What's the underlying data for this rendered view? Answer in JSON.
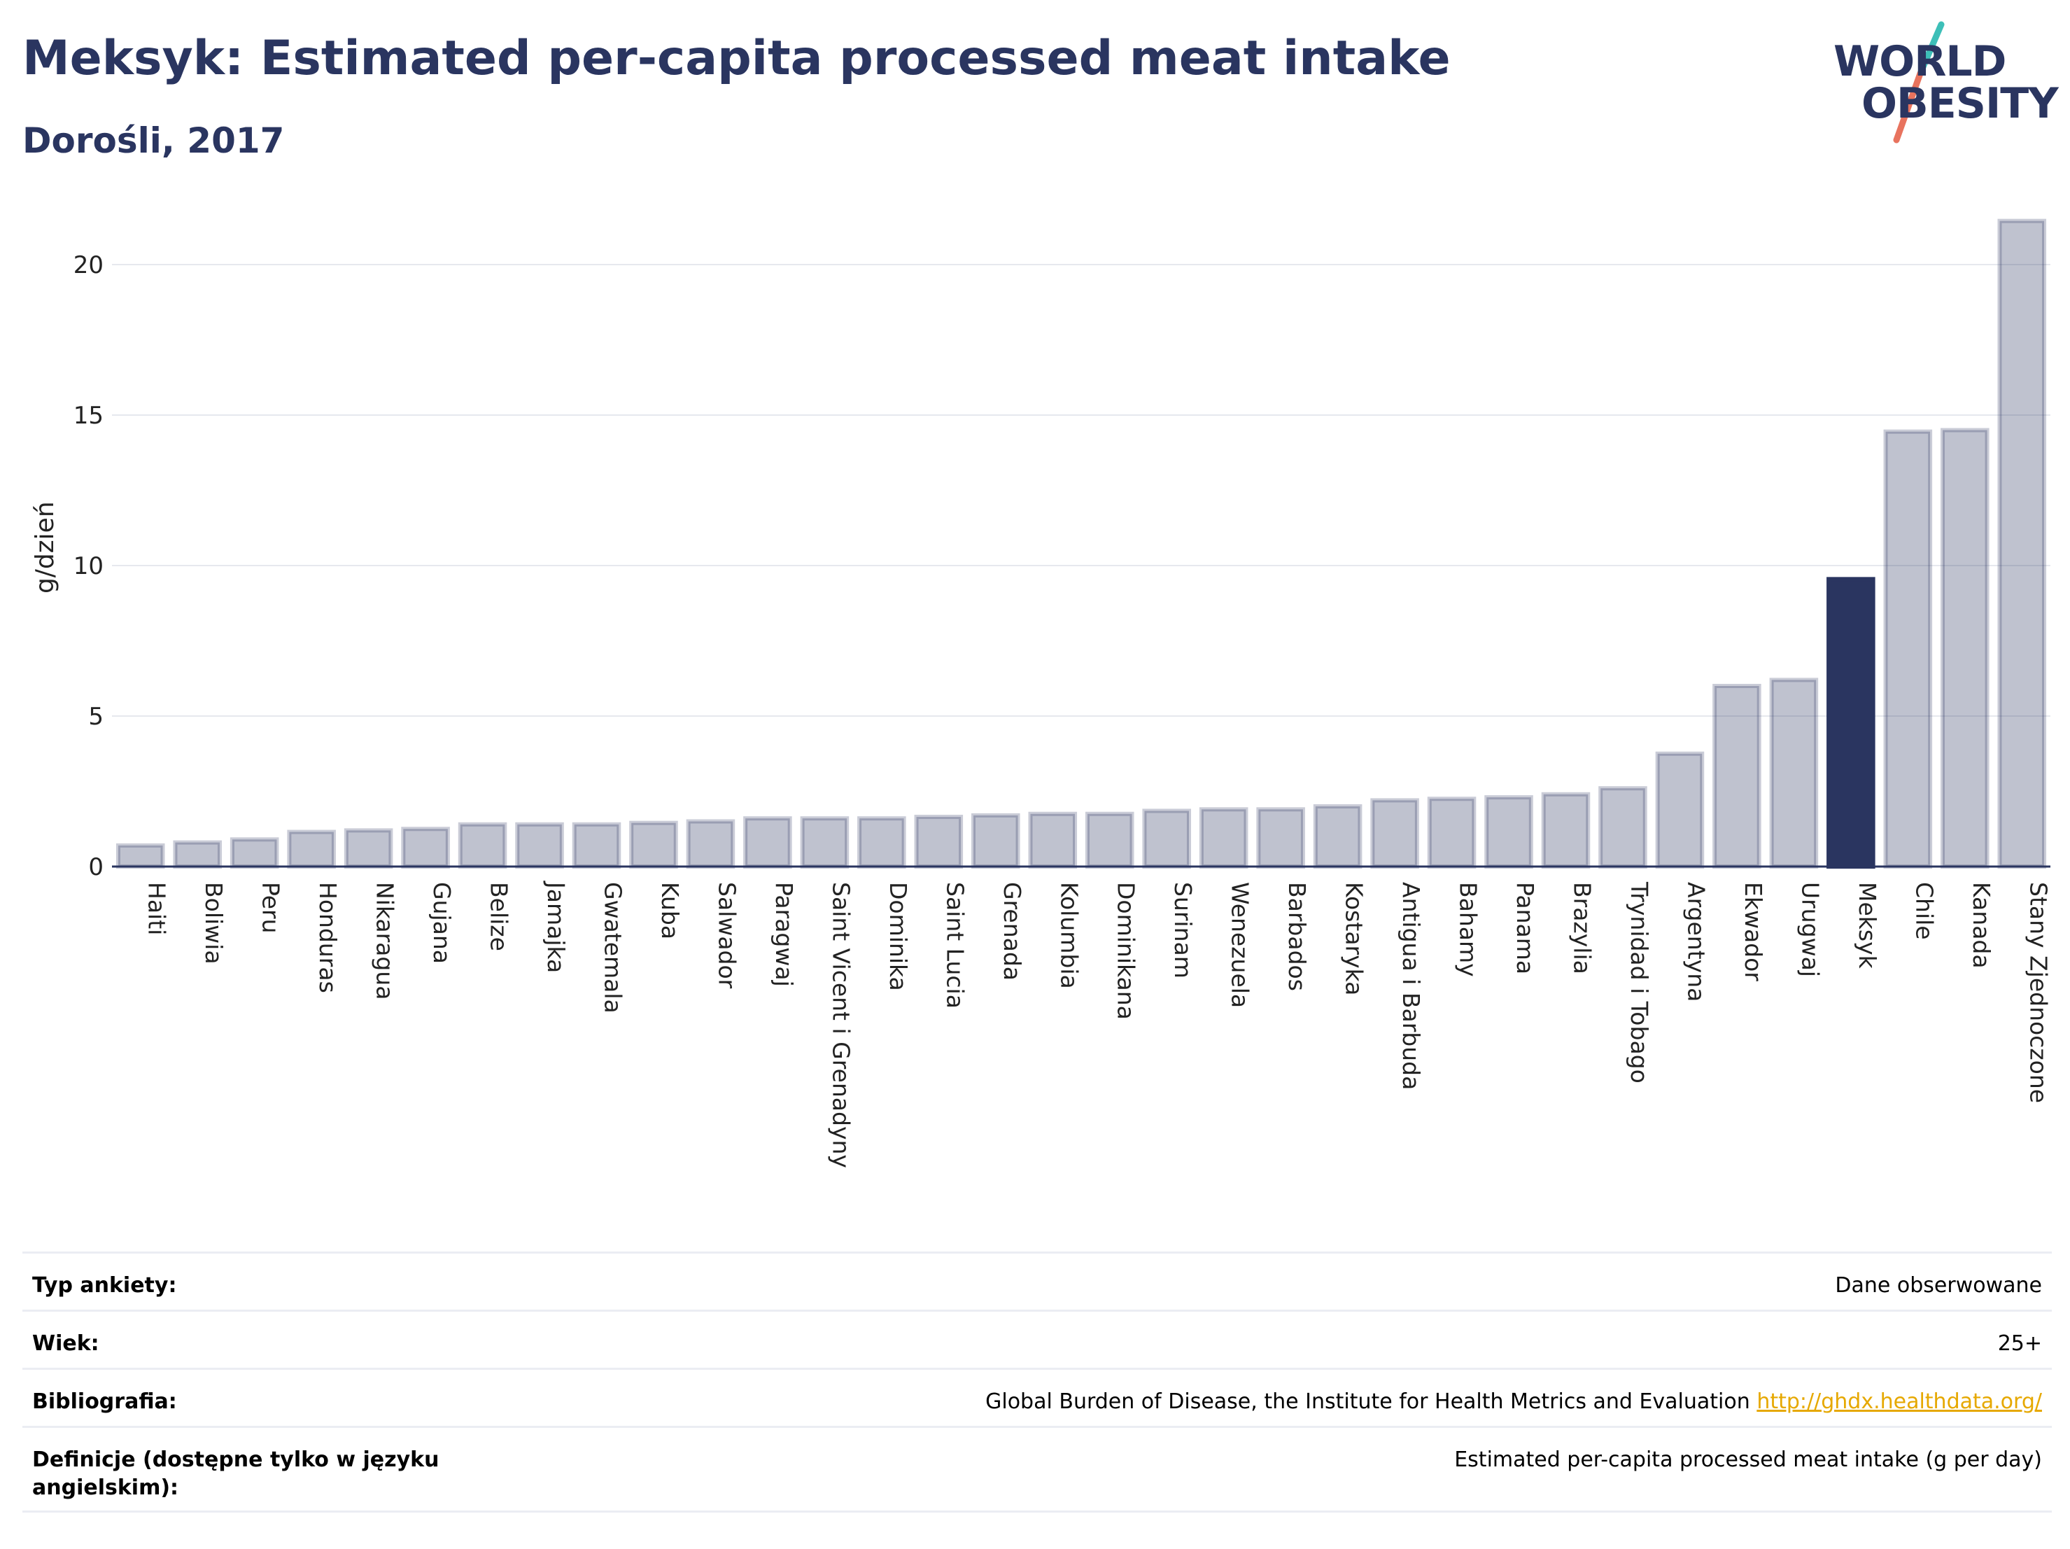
{
  "header": {
    "title": "Meksyk: Estimated per-capita processed meat intake",
    "subtitle": "Dorośli, 2017"
  },
  "logo": {
    "line1": "WORLD",
    "line2": "OBESITY"
  },
  "chart_data": {
    "type": "bar",
    "ylabel": "g/dzień",
    "ylim": [
      0,
      22
    ],
    "yticks": [
      0,
      5,
      10,
      15,
      20
    ],
    "grid": true,
    "highlight": "Meksyk",
    "colors": {
      "bar": "#2a3560",
      "highlight": "#2a3560",
      "grid": "#e6e8ee"
    },
    "categories": [
      "Haiti",
      "Boliwia",
      "Peru",
      "Honduras",
      "Nikaragua",
      "Gujana",
      "Belize",
      "Jamajka",
      "Gwatemala",
      "Kuba",
      "Salwador",
      "Paragwaj",
      "Saint Vicent i Grenadyny",
      "Dominika",
      "Saint Lucia",
      "Grenada",
      "Kolumbia",
      "Dominikana",
      "Surinam",
      "Wenezuela",
      "Barbados",
      "Kostaryka",
      "Antigua i Barbuda",
      "Bahamy",
      "Panama",
      "Brazylia",
      "Trynidad i Tobago",
      "Argentyna",
      "Ekwador",
      "Urugwaj",
      "Meksyk",
      "Chile",
      "Kanada",
      "Stany Zjednoczone"
    ],
    "values": [
      0.7,
      0.8,
      0.9,
      1.15,
      1.2,
      1.25,
      1.4,
      1.4,
      1.4,
      1.45,
      1.5,
      1.6,
      1.6,
      1.6,
      1.65,
      1.7,
      1.75,
      1.75,
      1.85,
      1.9,
      1.9,
      2.0,
      2.2,
      2.25,
      2.3,
      2.4,
      2.6,
      3.75,
      6.0,
      6.2,
      9.55,
      14.45,
      14.5,
      21.45
    ]
  },
  "info": [
    {
      "label": "Typ ankiety:",
      "value": "Dane obserwowane"
    },
    {
      "label": "Wiek:",
      "value": "25+"
    },
    {
      "label": "Bibliografia:",
      "value": "Global Burden of Disease, the Institute for Health Metrics and Evaluation",
      "link": "http://ghdx.healthdata.org/"
    },
    {
      "label": "Definicje (dostępne tylko w języku angielskim):",
      "value": "Estimated per-capita processed meat intake (g per day)"
    }
  ]
}
